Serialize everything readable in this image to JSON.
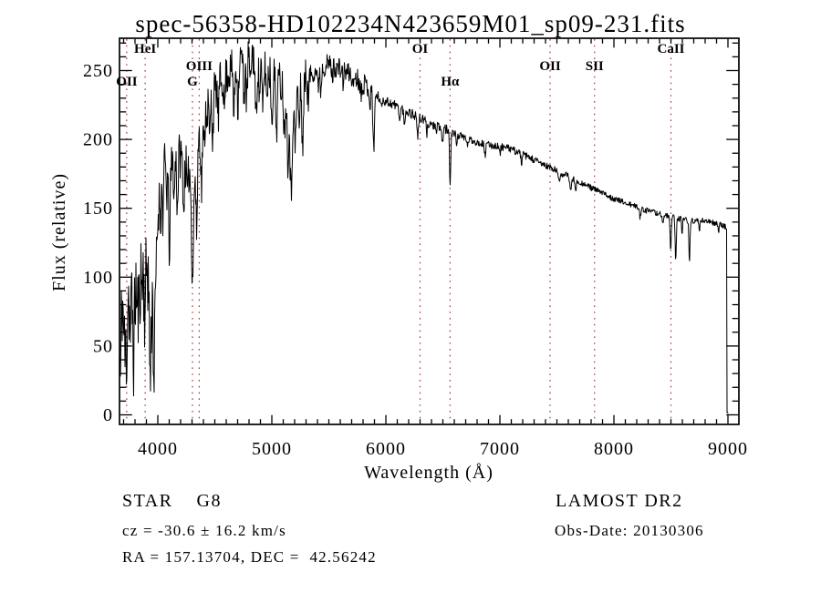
{
  "chart_data": {
    "type": "line",
    "title": "spec-56358-HD102234N423659M01_sp09-231.fits",
    "xlabel": "Wavelength (Å)",
    "ylabel": "Flux (relative)",
    "xlim": [
      3664,
      9098
    ],
    "ylim": [
      0,
      273
    ],
    "x_ticks": [
      4000,
      5000,
      6000,
      7000,
      8000,
      9000
    ],
    "x_minor_step": 100,
    "y_ticks": [
      0,
      50,
      100,
      150,
      200,
      250
    ],
    "y_minor_step": 10,
    "grid": false,
    "background_color": "#ffffff",
    "line_color": "#000000",
    "marker_line_color": "#9e3a3a",
    "line_markers": [
      {
        "label": "OII",
        "wavelength": 3727,
        "row": "C"
      },
      {
        "label": "HeI",
        "wavelength": 3889,
        "row": "A"
      },
      {
        "label": "G",
        "wavelength": 4304,
        "row": "C"
      },
      {
        "label": "OIII",
        "wavelength": 4363,
        "row": "B"
      },
      {
        "label": "OI",
        "wavelength": 6300,
        "row": "A"
      },
      {
        "label": "Hα",
        "wavelength": 6563,
        "row": "C"
      },
      {
        "label": "OII",
        "wavelength": 7440,
        "row": "B"
      },
      {
        "label": "SII",
        "wavelength": 7830,
        "row": "B"
      },
      {
        "label": "CaII",
        "wavelength": 8500,
        "row": "A"
      }
    ],
    "series": [
      {
        "name": "spectrum",
        "noise_seed": 11,
        "sample_step_angstrom": 4,
        "envelope_anchors": [
          [
            3664,
            55
          ],
          [
            3672,
            40
          ],
          [
            3680,
            70
          ],
          [
            3690,
            90
          ],
          [
            3700,
            80
          ],
          [
            3710,
            60
          ],
          [
            3725,
            75
          ],
          [
            3740,
            95
          ],
          [
            3755,
            70
          ],
          [
            3770,
            90
          ],
          [
            3785,
            75
          ],
          [
            3800,
            95
          ],
          [
            3815,
            100
          ],
          [
            3830,
            95
          ],
          [
            3845,
            105
          ],
          [
            3860,
            110
          ],
          [
            3875,
            100
          ],
          [
            3890,
            105
          ],
          [
            3905,
            115
          ],
          [
            3920,
            110
          ],
          [
            3935,
            85
          ],
          [
            3950,
            95
          ],
          [
            3968,
            80
          ],
          [
            3985,
            110
          ],
          [
            4000,
            140
          ],
          [
            4015,
            160
          ],
          [
            4030,
            172
          ],
          [
            4050,
            180
          ],
          [
            4075,
            185
          ],
          [
            4100,
            180
          ],
          [
            4125,
            182
          ],
          [
            4150,
            188
          ],
          [
            4175,
            192
          ],
          [
            4200,
            188
          ],
          [
            4225,
            182
          ],
          [
            4250,
            180
          ],
          [
            4275,
            178
          ],
          [
            4300,
            172
          ],
          [
            4325,
            185
          ],
          [
            4350,
            200
          ],
          [
            4375,
            208
          ],
          [
            4400,
            215
          ],
          [
            4430,
            222
          ],
          [
            4460,
            228
          ],
          [
            4490,
            232
          ],
          [
            4520,
            238
          ],
          [
            4560,
            243
          ],
          [
            4600,
            247
          ],
          [
            4640,
            250
          ],
          [
            4680,
            253
          ],
          [
            4720,
            258
          ],
          [
            4760,
            263
          ],
          [
            4800,
            265
          ],
          [
            4840,
            261
          ],
          [
            4880,
            256
          ],
          [
            4920,
            253
          ],
          [
            4960,
            251
          ],
          [
            5000,
            248
          ],
          [
            5040,
            245
          ],
          [
            5080,
            241
          ],
          [
            5120,
            236
          ],
          [
            5160,
            228
          ],
          [
            5200,
            232
          ],
          [
            5240,
            239
          ],
          [
            5280,
            243
          ],
          [
            5320,
            246
          ],
          [
            5360,
            249
          ],
          [
            5400,
            251
          ],
          [
            5450,
            253
          ],
          [
            5500,
            255
          ],
          [
            5550,
            253
          ],
          [
            5600,
            251
          ],
          [
            5650,
            249
          ],
          [
            5700,
            247
          ],
          [
            5750,
            244
          ],
          [
            5800,
            241
          ],
          [
            5850,
            238
          ],
          [
            5900,
            233
          ],
          [
            5950,
            230
          ],
          [
            6000,
            228
          ],
          [
            6100,
            224
          ],
          [
            6200,
            220
          ],
          [
            6300,
            215
          ],
          [
            6400,
            211
          ],
          [
            6500,
            208
          ],
          [
            6600,
            204
          ],
          [
            6700,
            201
          ],
          [
            6800,
            198
          ],
          [
            6900,
            196
          ],
          [
            7000,
            195
          ],
          [
            7100,
            193
          ],
          [
            7200,
            189
          ],
          [
            7300,
            185
          ],
          [
            7400,
            181
          ],
          [
            7500,
            177
          ],
          [
            7600,
            173
          ],
          [
            7700,
            169
          ],
          [
            7800,
            165
          ],
          [
            7900,
            161
          ],
          [
            8000,
            157
          ],
          [
            8100,
            154
          ],
          [
            8200,
            151
          ],
          [
            8300,
            148
          ],
          [
            8400,
            146
          ],
          [
            8500,
            144
          ],
          [
            8600,
            142
          ],
          [
            8700,
            141
          ],
          [
            8800,
            141
          ],
          [
            8900,
            139
          ],
          [
            8950,
            138
          ],
          [
            8985,
            136
          ],
          [
            8988,
            135
          ],
          [
            8991,
            2
          ],
          [
            9000,
            1
          ]
        ],
        "absorption_dips": [
          [
            3672,
            20,
            5
          ],
          [
            3698,
            15,
            5
          ],
          [
            3712,
            20,
            5
          ],
          [
            3727,
            30,
            6
          ],
          [
            3762,
            20,
            5
          ],
          [
            3790,
            35,
            7
          ],
          [
            3820,
            25,
            6
          ],
          [
            3835,
            20,
            5
          ],
          [
            3858,
            15,
            5
          ],
          [
            3889,
            30,
            6
          ],
          [
            3920,
            15,
            5
          ],
          [
            3934,
            60,
            7
          ],
          [
            3968,
            55,
            7
          ],
          [
            4026,
            25,
            5
          ],
          [
            4045,
            35,
            5
          ],
          [
            4077,
            25,
            5
          ],
          [
            4101,
            60,
            7
          ],
          [
            4144,
            30,
            5
          ],
          [
            4172,
            40,
            6
          ],
          [
            4227,
            35,
            5
          ],
          [
            4260,
            25,
            5
          ],
          [
            4305,
            72,
            9
          ],
          [
            4340,
            60,
            7
          ],
          [
            4383,
            45,
            6
          ],
          [
            4405,
            25,
            5
          ],
          [
            4455,
            30,
            5
          ],
          [
            4481,
            28,
            5
          ],
          [
            4530,
            25,
            5
          ],
          [
            4584,
            25,
            5
          ],
          [
            4668,
            35,
            6
          ],
          [
            4703,
            30,
            6
          ],
          [
            4755,
            35,
            6
          ],
          [
            4780,
            40,
            6
          ],
          [
            4810,
            30,
            5
          ],
          [
            4861,
            45,
            7
          ],
          [
            4891,
            25,
            5
          ],
          [
            4920,
            35,
            6
          ],
          [
            4957,
            25,
            5
          ],
          [
            5000,
            35,
            6
          ],
          [
            5040,
            40,
            6
          ],
          [
            5110,
            35,
            6
          ],
          [
            5140,
            45,
            7
          ],
          [
            5169,
            70,
            9
          ],
          [
            5205,
            40,
            7
          ],
          [
            5240,
            30,
            6
          ],
          [
            5270,
            45,
            7
          ],
          [
            5320,
            20,
            5
          ],
          [
            5405,
            15,
            5
          ],
          [
            5430,
            18,
            5
          ],
          [
            5530,
            10,
            5
          ],
          [
            5625,
            8,
            5
          ],
          [
            5710,
            9,
            5
          ],
          [
            5782,
            10,
            5
          ],
          [
            5860,
            12,
            5
          ],
          [
            5893,
            38,
            7
          ],
          [
            5960,
            7,
            5
          ],
          [
            6122,
            10,
            5
          ],
          [
            6162,
            12,
            5
          ],
          [
            6280,
            16,
            5
          ],
          [
            6360,
            8,
            5
          ],
          [
            6440,
            7,
            5
          ],
          [
            6495,
            12,
            5
          ],
          [
            6563,
            38,
            5
          ],
          [
            6620,
            7,
            4
          ],
          [
            6717,
            7,
            4
          ],
          [
            6870,
            9,
            5
          ],
          [
            7000,
            6,
            5
          ],
          [
            7190,
            7,
            5
          ],
          [
            7520,
            8,
            6
          ],
          [
            7620,
            10,
            6
          ],
          [
            7665,
            9,
            5
          ],
          [
            8230,
            7,
            5
          ],
          [
            8430,
            8,
            5
          ],
          [
            8498,
            24,
            5
          ],
          [
            8542,
            32,
            5
          ],
          [
            8598,
            10,
            4
          ],
          [
            8662,
            30,
            5
          ],
          [
            8750,
            9,
            4
          ],
          [
            8920,
            6,
            4
          ]
        ],
        "noise_regions": [
          [
            3664,
            3980,
            36
          ],
          [
            3980,
            4500,
            17
          ],
          [
            4500,
            5320,
            15
          ],
          [
            5320,
            5900,
            8
          ],
          [
            5900,
            6600,
            4
          ],
          [
            6600,
            7600,
            2.8
          ],
          [
            7600,
            8988,
            2.2
          ],
          [
            8988,
            9000,
            0.5
          ]
        ]
      }
    ]
  },
  "annotations": {
    "class_line": "STAR    G8",
    "survey": "LAMOST DR2",
    "cz_line": "cz = -30.6 ± 16.2 km/s",
    "obs_date": "Obs-Date: 20130306",
    "radec_line": "RA = 157.13704, DEC =  42.56242"
  }
}
